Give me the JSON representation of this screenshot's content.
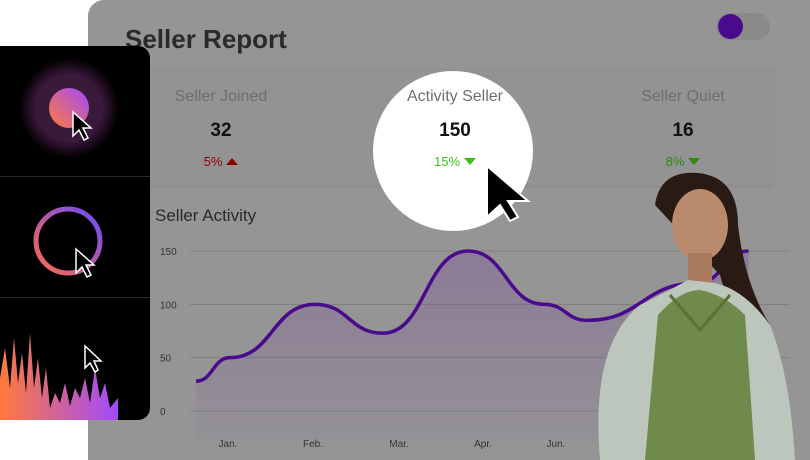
{
  "header": {
    "title": "Seller Report",
    "toggle_on": true
  },
  "stats": [
    {
      "label": "Seller Joined",
      "value": "32",
      "change": "5%",
      "direction": "up",
      "color": "#8b0000"
    },
    {
      "label": "Activity Seller",
      "value": "150",
      "change": "15%",
      "direction": "down",
      "color": "#3fbf1f"
    },
    {
      "label": "Seller Quiet",
      "value": "16",
      "change": "8%",
      "direction": "down",
      "color": "#2e8b0a"
    }
  ],
  "chart_data": {
    "type": "area",
    "title": "Seller Activity",
    "yticks": [
      "150",
      "100",
      "50",
      "0"
    ],
    "ylim": [
      0,
      150
    ],
    "xticks": [
      "Jan.",
      "Feb.",
      "Mar.",
      "Apr.",
      "Jun."
    ],
    "series": [
      {
        "name": "Seller Activity",
        "color": "#4a0a8c",
        "x": [
          -0.4,
          0,
          1,
          1.8,
          2.8,
          3.7,
          4.2,
          5.5,
          6.1
        ],
        "values": [
          28,
          50,
          100,
          73,
          150,
          100,
          85,
          120,
          150
        ]
      }
    ]
  }
}
